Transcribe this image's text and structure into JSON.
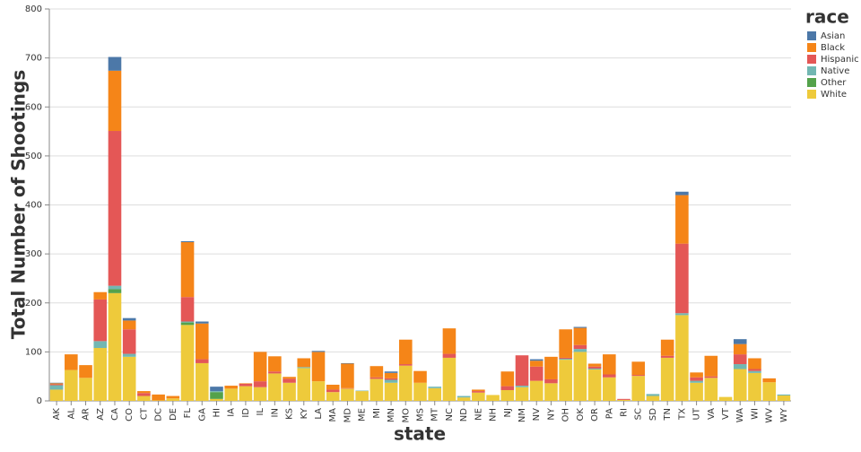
{
  "chart_data": {
    "type": "stacked_bar",
    "x_label": "state",
    "y_label": "Total Number of Shootings",
    "legend_title": "race",
    "categories": [
      "AK",
      "AL",
      "AR",
      "AZ",
      "CA",
      "CO",
      "CT",
      "DC",
      "DE",
      "FL",
      "GA",
      "HI",
      "IA",
      "ID",
      "IL",
      "IN",
      "KS",
      "KY",
      "LA",
      "MA",
      "MD",
      "ME",
      "MI",
      "MN",
      "MO",
      "MS",
      "MT",
      "NC",
      "ND",
      "NE",
      "NH",
      "NJ",
      "NM",
      "NV",
      "NY",
      "OH",
      "OK",
      "OR",
      "PA",
      "RI",
      "SC",
      "SD",
      "TN",
      "TX",
      "UT",
      "VA",
      "VT",
      "WA",
      "WI",
      "WV",
      "WY"
    ],
    "series": [
      {
        "name": "Asian",
        "color": "#4c78a8",
        "values": [
          1,
          0,
          0,
          0,
          28,
          5,
          0,
          0,
          0,
          2,
          4,
          9,
          0,
          0,
          0,
          0,
          0,
          0,
          2,
          0,
          1,
          0,
          0,
          3,
          0,
          0,
          0,
          0,
          0,
          0,
          0,
          0,
          0,
          3,
          0,
          0,
          2,
          0,
          0,
          0,
          0,
          0,
          0,
          7,
          0,
          0,
          0,
          10,
          0,
          0,
          0
        ]
      },
      {
        "name": "Black",
        "color": "#f58518",
        "values": [
          2,
          32,
          26,
          15,
          123,
          18,
          4,
          12,
          5,
          112,
          73,
          0,
          6,
          1,
          60,
          31,
          4,
          18,
          60,
          10,
          50,
          0,
          23,
          11,
          50,
          24,
          0,
          52,
          0,
          3,
          0,
          30,
          0,
          12,
          46,
          58,
          35,
          6,
          41,
          0,
          27,
          0,
          33,
          99,
          10,
          42,
          0,
          21,
          22,
          8,
          0
        ]
      },
      {
        "name": "Hispanic",
        "color": "#e45756",
        "values": [
          2,
          0,
          0,
          85,
          316,
          50,
          6,
          0,
          0,
          50,
          8,
          0,
          0,
          5,
          12,
          4,
          8,
          0,
          0,
          5,
          1,
          0,
          3,
          3,
          3,
          0,
          0,
          8,
          0,
          3,
          0,
          8,
          62,
          29,
          8,
          2,
          8,
          4,
          6,
          2,
          2,
          0,
          4,
          142,
          7,
          3,
          0,
          20,
          4,
          0,
          0
        ]
      },
      {
        "name": "Native",
        "color": "#72b7b2",
        "values": [
          9,
          0,
          0,
          14,
          7,
          6,
          0,
          0,
          0,
          2,
          0,
          2,
          0,
          0,
          0,
          0,
          0,
          2,
          0,
          0,
          0,
          1,
          0,
          6,
          0,
          0,
          3,
          0,
          3,
          0,
          0,
          0,
          3,
          0,
          0,
          2,
          6,
          2,
          0,
          0,
          0,
          4,
          0,
          4,
          4,
          0,
          0,
          10,
          4,
          0,
          2
        ]
      },
      {
        "name": "Other",
        "color": "#54a24b",
        "values": [
          0,
          0,
          0,
          0,
          8,
          0,
          0,
          0,
          0,
          5,
          0,
          14,
          0,
          0,
          0,
          0,
          0,
          0,
          0,
          0,
          0,
          0,
          0,
          0,
          0,
          0,
          0,
          0,
          0,
          0,
          0,
          0,
          0,
          0,
          0,
          0,
          0,
          0,
          0,
          0,
          0,
          0,
          0,
          0,
          0,
          0,
          0,
          0,
          0,
          0,
          0
        ]
      },
      {
        "name": "White",
        "color": "#eeca3b",
        "values": [
          23,
          63,
          47,
          108,
          220,
          90,
          10,
          1,
          5,
          155,
          77,
          4,
          25,
          30,
          28,
          56,
          37,
          67,
          40,
          18,
          25,
          20,
          45,
          37,
          72,
          37,
          26,
          88,
          7,
          17,
          12,
          22,
          28,
          41,
          36,
          84,
          100,
          64,
          48,
          2,
          51,
          10,
          88,
          175,
          37,
          47,
          8,
          65,
          57,
          38,
          11
        ]
      }
    ],
    "ylim": [
      0,
      800
    ],
    "yticks": [
      0,
      100,
      200,
      300,
      400,
      500,
      600,
      700,
      800
    ],
    "grid": true
  }
}
